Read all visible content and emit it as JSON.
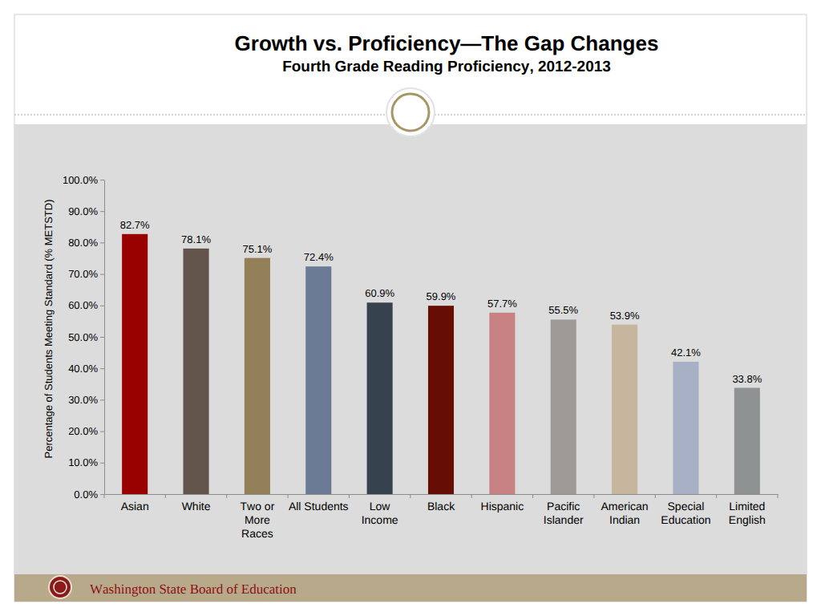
{
  "chart_data": {
    "type": "bar",
    "title": "Growth vs. Proficiency—The Gap Changes",
    "subtitle": "Fourth Grade Reading Proficiency, 2012-2013",
    "ylabel": "Percentage of Students Meeting Standard (% METSTD)",
    "categories": [
      "Asian",
      "White",
      "Two or More Races",
      "All Students",
      "Low Income",
      "Black",
      "Hispanic",
      "Pacific Islander",
      "American Indian",
      "Special Education",
      "Limited English"
    ],
    "values": [
      82.7,
      78.1,
      75.1,
      72.4,
      60.9,
      59.9,
      57.7,
      55.5,
      53.9,
      42.1,
      33.8
    ],
    "value_labels": [
      "82.7%",
      "78.1%",
      "75.1%",
      "72.4%",
      "60.9%",
      "59.9%",
      "57.7%",
      "55.5%",
      "53.9%",
      "42.1%",
      "33.8%"
    ],
    "colors": [
      "#990000",
      "#63544b",
      "#948058",
      "#6b7b96",
      "#37424f",
      "#660e05",
      "#c98283",
      "#a09a96",
      "#c7b59e",
      "#a8b0c6",
      "#8e9293"
    ],
    "ylim": [
      0,
      100
    ],
    "yticks": [
      {
        "value": 0,
        "label": "0.0%"
      },
      {
        "value": 10,
        "label": "10.0%"
      },
      {
        "value": 20,
        "label": "20.0%"
      },
      {
        "value": 30,
        "label": "30.0%"
      },
      {
        "value": 40,
        "label": "40.0%"
      },
      {
        "value": 50,
        "label": "50.0%"
      },
      {
        "value": 60,
        "label": "60.0%"
      },
      {
        "value": 70,
        "label": "70.0%"
      },
      {
        "value": 80,
        "label": "80.0%"
      },
      {
        "value": 90,
        "label": "90.0%"
      },
      {
        "value": 100,
        "label": "100.0%"
      }
    ],
    "grid": false,
    "data_labels": true
  },
  "footer": "Washington State Board of Education"
}
